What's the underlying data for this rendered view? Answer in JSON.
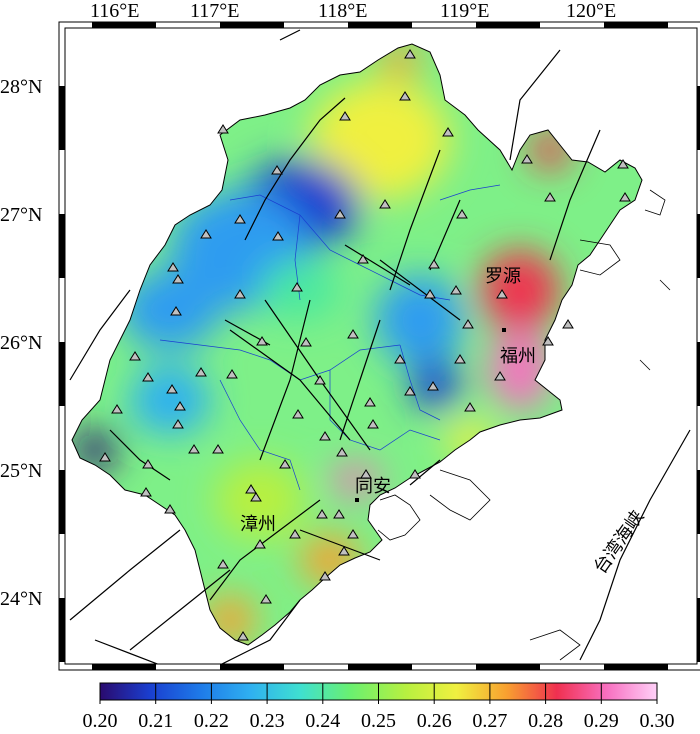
{
  "map": {
    "longitude_labels": [
      "116°E",
      "117°E",
      "118°E",
      "119°E",
      "120°E"
    ],
    "latitude_labels": [
      "28°N",
      "27°N",
      "26°N",
      "25°N",
      "24°N"
    ],
    "city_labels": [
      "罗源",
      "福州",
      "同安",
      "漳州"
    ],
    "sea_label": "台湾海峡",
    "colorbar": {
      "min": 0.2,
      "max": 0.3,
      "tick_labels": [
        "0.20",
        "0.21",
        "0.22",
        "0.23",
        "0.24",
        "0.25",
        "0.26",
        "0.27",
        "0.28",
        "0.29",
        "0.30"
      ],
      "colors": [
        "#2a0a6e",
        "#1a3fd0",
        "#1e7ae8",
        "#2fb0f0",
        "#3fe0d0",
        "#6af070",
        "#b8f040",
        "#f0f040",
        "#f8a030",
        "#f03050",
        "#f870c0",
        "#ffd0f8"
      ]
    }
  }
}
